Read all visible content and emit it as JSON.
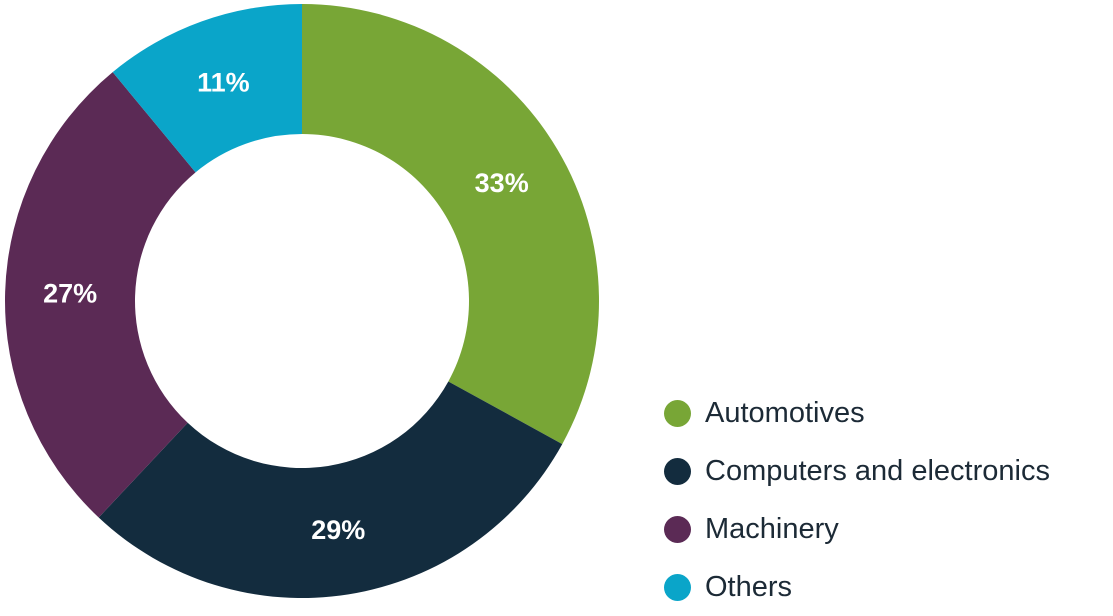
{
  "chart_data": {
    "type": "pie",
    "style": "donut",
    "title": "",
    "categories": [
      "Automotives",
      "Computers and electronics",
      "Machinery",
      "Others"
    ],
    "values": [
      33,
      29,
      27,
      11
    ],
    "labels": [
      "33%",
      "29%",
      "27%",
      "11%"
    ],
    "unit": "%",
    "colors": [
      "#78a636",
      "#132c3e",
      "#5b2a55",
      "#0aa5c9"
    ],
    "legend_position": "bottom-right"
  }
}
